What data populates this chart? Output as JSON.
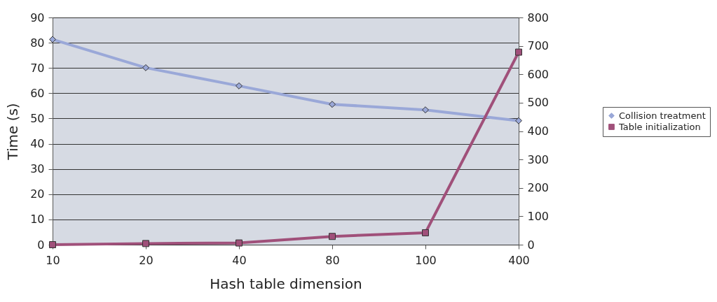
{
  "chart_data": {
    "type": "line",
    "xlabel": "Hash table dimension",
    "ylabel": "Time (s)",
    "categories": [
      "10",
      "20",
      "40",
      "80",
      "100",
      "400"
    ],
    "series": [
      {
        "name": "Collision treatment",
        "color": "#9aa8d8",
        "marker": "diamond",
        "values": [
          81.3,
          70.1,
          62.9,
          55.6,
          53.4,
          49.1
        ]
      },
      {
        "name": "Table initialization",
        "color": "#a0507a",
        "marker": "square",
        "axis": "y2",
        "values": [
          0,
          4,
          6,
          29,
          42,
          678
        ]
      }
    ],
    "ylim": [
      0,
      90
    ],
    "yticks": [
      0,
      10,
      20,
      30,
      40,
      50,
      60,
      70,
      80,
      90
    ],
    "y2lim": [
      0,
      800
    ],
    "y2ticks": [
      0,
      100,
      200,
      300,
      400,
      500,
      600,
      700,
      800
    ],
    "grid": "y",
    "legend": "right"
  }
}
